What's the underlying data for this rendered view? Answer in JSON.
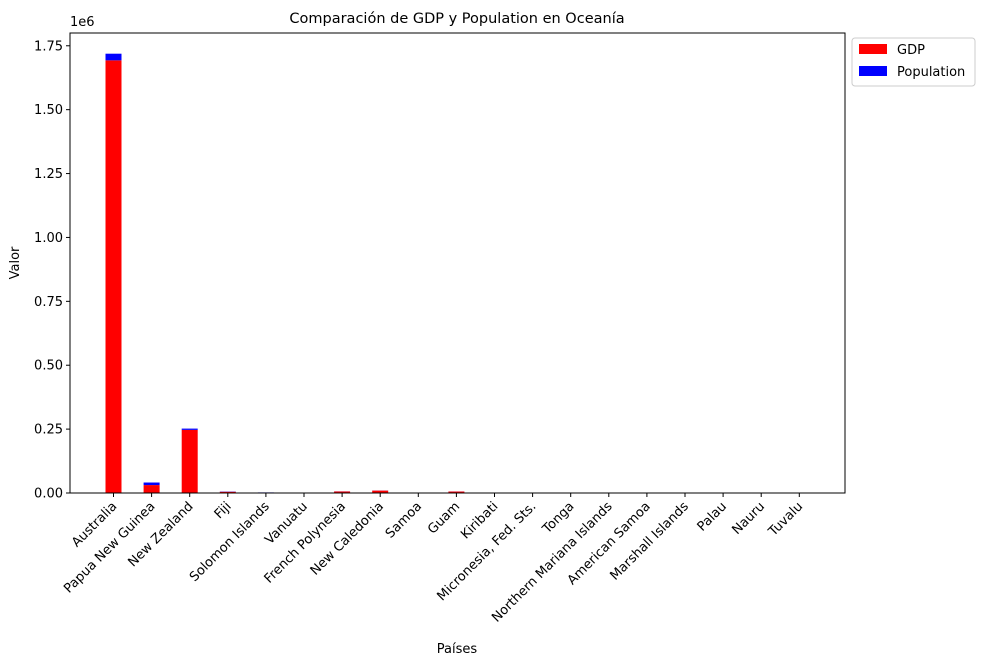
{
  "chart_data": {
    "type": "bar",
    "stacked": true,
    "title": "Comparación de GDP y Population en Oceanía",
    "xlabel": "Países",
    "ylabel": "Valor",
    "offset_text": "1e6",
    "ylim": [
      0,
      1.8
    ],
    "yticks": [
      "0.00",
      "0.25",
      "0.50",
      "0.75",
      "1.00",
      "1.25",
      "1.50",
      "1.75"
    ],
    "legend_position": "upper-right-outside",
    "categories": [
      "Australia",
      "Papua New Guinea",
      "New Zealand",
      "Fiji",
      "Solomon Islands",
      "Vanuatu",
      "French Polynesia",
      "New Caledonia",
      "Samoa",
      "Guam",
      "Kiribati",
      "Micronesia, Fed. Sts.",
      "Tonga",
      "Northern Mariana Islands",
      "American Samoa",
      "Marshall Islands",
      "Palau",
      "Nauru",
      "Tuvalu"
    ],
    "series": [
      {
        "name": "GDP",
        "color": "#ff0000",
        "values": [
          1.693,
          0.031,
          0.247,
          0.005,
          0.0016,
          0.001,
          0.006,
          0.0095,
          0.0008,
          0.0058,
          0.0002,
          0.0004,
          0.0005,
          0.0012,
          0.0007,
          0.0002,
          0.0003,
          0.0001,
          0.0001
        ]
      },
      {
        "name": "Population",
        "color": "#0000ff",
        "values": [
          0.026,
          0.01,
          0.005,
          0.0009,
          0.0007,
          0.0003,
          0.0003,
          0.0003,
          0.0002,
          0.0002,
          0.0001,
          0.0001,
          0.0001,
          0.0001,
          0.0001,
          0.0001,
          0.0001,
          0.0001,
          0.0001
        ]
      }
    ]
  }
}
